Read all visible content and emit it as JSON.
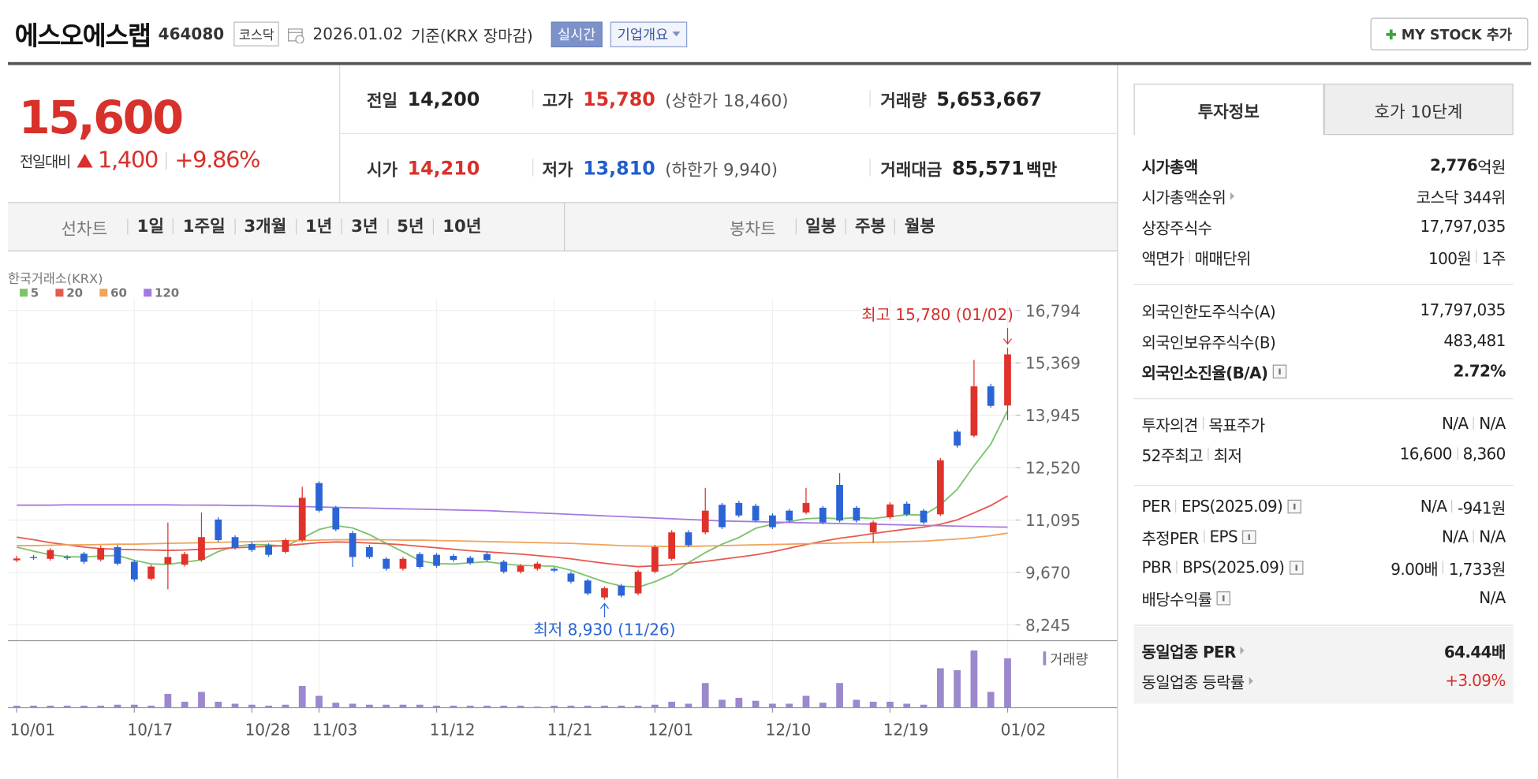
{
  "header": {
    "name": "에스오에스랩",
    "code": "464080",
    "market": "코스닥",
    "date": "2026.01.02",
    "basis": "기준(KRX 장마감)",
    "realtime": "실시간",
    "company": "기업개요",
    "mystock": "MY STOCK 추가"
  },
  "price": {
    "current": "15,600",
    "change_label": "전일대비",
    "change": "1,400",
    "rate": "+9.86%"
  },
  "quote": {
    "rows": [
      [
        {
          "label": "전일",
          "value": "14,200"
        },
        {
          "label": "고가",
          "value": "15,780",
          "sub": "(상한가 18,460)"
        },
        {
          "label": "거래량",
          "value": "5,653,667"
        }
      ],
      [
        {
          "label": "시가",
          "value": "14,210"
        },
        {
          "label": "저가",
          "value": "13,810",
          "sub": "(하한가 9,940)"
        },
        {
          "label": "거래대금",
          "value": "85,571",
          "unit": "백만"
        }
      ]
    ]
  },
  "tabs": {
    "line_label": "선차트",
    "periods": [
      "1일",
      "1주일",
      "3개월",
      "1년",
      "3년",
      "5년",
      "10년"
    ],
    "candle_label": "봉차트",
    "candles": [
      "일봉",
      "주봉",
      "월봉"
    ]
  },
  "chart_data": {
    "type": "candlestick",
    "source": "한국거래소(KRX)",
    "categories": [
      "10/01",
      null,
      null,
      null,
      null,
      null,
      null,
      "10/17",
      null,
      null,
      null,
      null,
      null,
      null,
      "10/28",
      null,
      null,
      null,
      "11/03",
      null,
      null,
      null,
      null,
      null,
      null,
      "11/12",
      null,
      null,
      null,
      null,
      null,
      null,
      "11/21",
      null,
      null,
      null,
      null,
      null,
      "12/01",
      null,
      null,
      null,
      null,
      null,
      null,
      "12/10",
      null,
      null,
      null,
      null,
      null,
      null,
      "12/19",
      null,
      null,
      null,
      null,
      null,
      null,
      "01/02"
    ],
    "open": [
      10000,
      10090,
      10040,
      10090,
      10180,
      10020,
      10360,
      9960,
      9500,
      9900,
      9880,
      10010,
      11110,
      10630,
      10440,
      10410,
      10230,
      10550,
      12100,
      11430,
      10740,
      10360,
      10040,
      9770,
      10170,
      10150,
      10120,
      10070,
      10170,
      9960,
      9690,
      9770,
      9770,
      9640,
      9450,
      8990,
      9310,
      9100,
      9690,
      10040,
      10760,
      10760,
      11510,
      11560,
      11480,
      11220,
      11350,
      11300,
      11430,
      12050,
      11430,
      10760,
      11170,
      11540,
      11350,
      11250,
      13500,
      13390,
      14730,
      14210
    ],
    "high": [
      10120,
      10150,
      10330,
      10140,
      10230,
      10400,
      10420,
      10010,
      9880,
      11030,
      10230,
      11300,
      11170,
      10680,
      10500,
      10460,
      10600,
      12000,
      12150,
      11480,
      10800,
      10420,
      10090,
      10090,
      10220,
      10200,
      10170,
      10120,
      10220,
      10010,
      9900,
      9960,
      9820,
      9690,
      9500,
      9290,
      9360,
      9740,
      10420,
      10820,
      10820,
      11970,
      11560,
      11620,
      11540,
      11280,
      11400,
      11970,
      11480,
      12370,
      11480,
      11080,
      11580,
      11600,
      11400,
      12780,
      13560,
      15450,
      14800,
      15780
    ],
    "low": [
      9950,
      10010,
      9990,
      10010,
      9900,
      9970,
      9860,
      9420,
      9450,
      9210,
      9830,
      9960,
      10500,
      10290,
      10230,
      10100,
      10180,
      10500,
      11300,
      10790,
      9820,
      10040,
      9720,
      9720,
      9770,
      9800,
      9960,
      9880,
      9960,
      9640,
      9640,
      9720,
      9670,
      9370,
      9050,
      8930,
      8990,
      9050,
      9640,
      9990,
      10360,
      10710,
      10850,
      11170,
      11030,
      10850,
      11030,
      11250,
      10980,
      11030,
      11030,
      10470,
      11120,
      11200,
      10980,
      11200,
      13060,
      13340,
      14150,
      13810
    ],
    "close": [
      10050,
      10060,
      10280,
      10060,
      9960,
      10330,
      9910,
      9480,
      9830,
      10090,
      10170,
      10630,
      10550,
      10340,
      10280,
      10150,
      10550,
      11700,
      11350,
      10840,
      10090,
      10090,
      9770,
      10040,
      9820,
      9850,
      10010,
      9930,
      10010,
      9690,
      9850,
      9910,
      9720,
      9420,
      9100,
      9240,
      9040,
      9690,
      10360,
      10760,
      10410,
      11350,
      10900,
      11220,
      11080,
      10900,
      11080,
      11560,
      11030,
      11080,
      11080,
      11030,
      11520,
      11250,
      11030,
      12720,
      13120,
      14730,
      14200,
      15600
    ],
    "volume": [
      226000,
      226000,
      226000,
      226000,
      226000,
      226000,
      339000,
      339000,
      226000,
      1582000,
      678000,
      1808000,
      678000,
      452000,
      339000,
      226000,
      339000,
      2486000,
      1356000,
      565000,
      452000,
      339000,
      339000,
      339000,
      339000,
      226000,
      226000,
      226000,
      226000,
      226000,
      226000,
      113000,
      226000,
      226000,
      226000,
      226000,
      226000,
      226000,
      339000,
      678000,
      452000,
      2825000,
      904000,
      1130000,
      791000,
      452000,
      452000,
      1356000,
      565000,
      2825000,
      904000,
      678000,
      678000,
      452000,
      339000,
      4520000,
      4294000,
      6554000,
      1808000,
      5653667
    ],
    "up_color": "#e0322b",
    "down_color": "#2a64d6",
    "volume_color": "#9c88cc",
    "volume_label": "거래량",
    "series": [
      {
        "name": "5",
        "color": "#7cc46d",
        "values": [
          10360,
          10250,
          10150,
          10100,
          10090,
          10120,
          10130,
          10000,
          9900,
          9890,
          9950,
          10010,
          10240,
          10380,
          10430,
          10420,
          10380,
          10600,
          10840,
          10940,
          10880,
          10700,
          10460,
          10230,
          9990,
          9910,
          9900,
          9930,
          9960,
          9900,
          9860,
          9850,
          9840,
          9730,
          9570,
          9410,
          9300,
          9270,
          9420,
          9620,
          9940,
          10210,
          10440,
          10620,
          10870,
          10980,
          11050,
          11130,
          11150,
          11130,
          11160,
          11140,
          11190,
          11240,
          11230,
          11510,
          11930,
          12570,
          13160,
          14070
        ]
      },
      {
        "name": "20",
        "color": "#e55a50",
        "values": [
          10630,
          10560,
          10480,
          10420,
          10360,
          10320,
          10300,
          10290,
          10280,
          10270,
          10280,
          10300,
          10320,
          10340,
          10360,
          10380,
          10400,
          10440,
          10480,
          10500,
          10490,
          10470,
          10450,
          10420,
          10380,
          10340,
          10300,
          10260,
          10230,
          10200,
          10170,
          10130,
          10090,
          10040,
          9980,
          9920,
          9870,
          9830,
          9850,
          9880,
          9920,
          9970,
          10030,
          10090,
          10150,
          10230,
          10330,
          10430,
          10520,
          10600,
          10660,
          10730,
          10790,
          10850,
          10900,
          10980,
          11100,
          11290,
          11490,
          11750
        ]
      },
      {
        "name": "60",
        "color": "#f0a35a",
        "values": [
          10400,
          10400,
          10410,
          10420,
          10420,
          10430,
          10440,
          10440,
          10450,
          10460,
          10470,
          10480,
          10490,
          10500,
          10510,
          10520,
          10530,
          10540,
          10550,
          10560,
          10560,
          10560,
          10560,
          10550,
          10550,
          10540,
          10530,
          10520,
          10510,
          10500,
          10490,
          10480,
          10470,
          10460,
          10440,
          10420,
          10400,
          10390,
          10380,
          10380,
          10380,
          10390,
          10400,
          10410,
          10420,
          10430,
          10440,
          10450,
          10460,
          10470,
          10480,
          10490,
          10500,
          10510,
          10520,
          10550,
          10580,
          10620,
          10670,
          10740
        ]
      },
      {
        "name": "120",
        "color": "#a57ae0",
        "values": [
          11500,
          11500,
          11500,
          11510,
          11510,
          11510,
          11510,
          11510,
          11510,
          11510,
          11500,
          11500,
          11500,
          11490,
          11490,
          11480,
          11470,
          11460,
          11450,
          11440,
          11430,
          11420,
          11410,
          11400,
          11390,
          11380,
          11370,
          11360,
          11350,
          11330,
          11310,
          11290,
          11270,
          11250,
          11230,
          11210,
          11190,
          11170,
          11150,
          11130,
          11110,
          11090,
          11070,
          11060,
          11050,
          11040,
          11030,
          11020,
          11010,
          11000,
          10990,
          10980,
          10970,
          10960,
          10950,
          10940,
          10930,
          10920,
          10910,
          10900
        ]
      }
    ],
    "ylim": [
      8245,
      16794
    ],
    "yticks": [
      {
        "value": 16794,
        "label": "16,794"
      },
      {
        "value": 15369,
        "label": "15,369"
      },
      {
        "value": 13945,
        "label": "13,945"
      },
      {
        "value": 12520,
        "label": "12,520"
      },
      {
        "value": 11095,
        "label": "11,095"
      },
      {
        "value": 9670,
        "label": "9,670"
      },
      {
        "value": 8245,
        "label": "8,245"
      }
    ],
    "grid": true,
    "annotations": {
      "high": "최고 15,780 (01/02)",
      "low": "최저 8,930 (11/26)"
    }
  },
  "info": {
    "tabs": [
      "투자정보",
      "호가 10단계"
    ],
    "groups": [
      {
        "rows": [
          {
            "label": [
              "시가총액"
            ],
            "value": [
              "2,776",
              "억원"
            ]
          },
          {
            "label": [
              "시가총액순위"
            ],
            "value": [
              "코스닥 344위"
            ]
          },
          {
            "label": [
              "상장주식수"
            ],
            "value": [
              "17,797,035"
            ]
          },
          {
            "label": [
              "액면가",
              "매매단위"
            ],
            "value": [
              "100원",
              "1주"
            ]
          }
        ]
      },
      {
        "rows": [
          {
            "label": [
              "외국인한도주식수(A)"
            ],
            "value": [
              "17,797,035"
            ]
          },
          {
            "label": [
              "외국인보유주식수(B)"
            ],
            "value": [
              "483,481"
            ]
          },
          {
            "label": [
              "외국인소진율(B/A)"
            ],
            "value": [
              "2.72%"
            ]
          }
        ]
      },
      {
        "rows": [
          {
            "label": [
              "투자의견",
              "목표주가"
            ],
            "value": [
              "N/A",
              "N/A"
            ]
          },
          {
            "label": [
              "52주최고",
              "최저"
            ],
            "value": [
              "16,600",
              "8,360"
            ]
          }
        ]
      },
      {
        "rows": [
          {
            "label": [
              "PER",
              "EPS(2025.09)"
            ],
            "value": [
              "N/A",
              "-941원"
            ]
          },
          {
            "label": [
              "추정PER",
              "EPS"
            ],
            "value": [
              "N/A",
              "N/A"
            ]
          },
          {
            "label": [
              "PBR",
              "BPS(2025.09)"
            ],
            "value": [
              "9.00배",
              "1,733원"
            ]
          },
          {
            "label": [
              "배당수익률"
            ],
            "value": [
              "N/A"
            ]
          }
        ]
      },
      {
        "rows": [
          {
            "label": [
              "동일업종 PER"
            ],
            "value": [
              "64.44배"
            ]
          },
          {
            "label": [
              "동일업종 등락률"
            ],
            "value": [
              "+3.09%"
            ]
          }
        ]
      }
    ]
  }
}
